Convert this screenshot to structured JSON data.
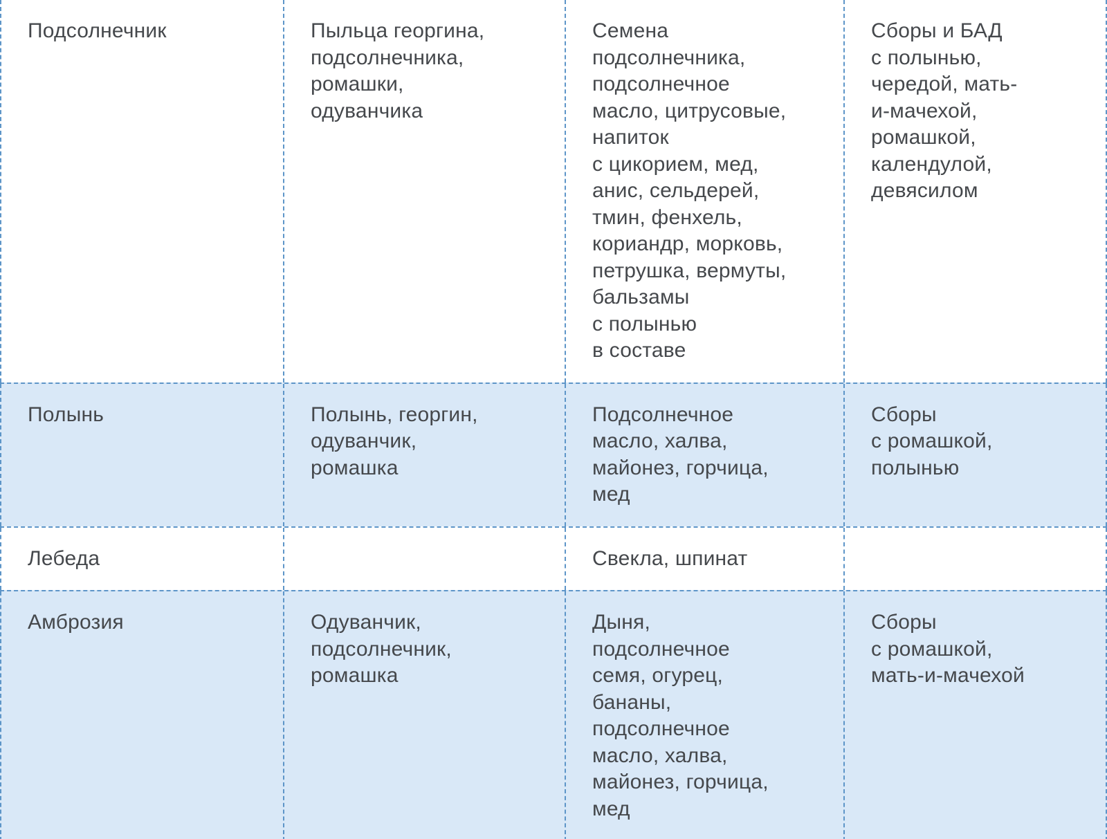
{
  "colors": {
    "border": "#5d95c8",
    "alt_row_bg": "#d9e8f7",
    "white_row_bg": "#ffffff",
    "text": "#45484c"
  },
  "table": {
    "description": "Allergen cross-reactivity table (4 columns): allergen, cross-reacting pollen, cross-reacting foods, herbal collections/supplements",
    "rows": [
      {
        "allergen": "Подсолнечник",
        "pollen": "Пыльца георгина,\nподсолнечника,\nромашки,\nодуванчика",
        "foods": "Семена\nподсолнечника,\nподсолнечное\nмасло, цитрусовые,\nнапиток\nс цикорием, мед,\nанис, сельдерей,\nтмин, фенхель,\nкориандр, морковь,\nпетрушка, вермуты,\nбальзамы\nс полынью\nв составе",
        "herbal": "Сборы и БАД\nс полынью,\nчередой, мать-\nи-мачехой,\nромашкой,\nкалендулой,\nдевясилом"
      },
      {
        "allergen": "Полынь",
        "pollen": "Полынь, георгин,\nодуванчик,\nромашка",
        "foods": "Подсолнечное\nмасло, халва,\nмайонез, горчица,\nмед",
        "herbal": "Сборы\nс ромашкой,\nполынью"
      },
      {
        "allergen": "Лебеда",
        "pollen": "",
        "foods": "Свекла, шпинат",
        "herbal": ""
      },
      {
        "allergen": "Амброзия",
        "pollen": "Одуванчик,\nподсолнечник,\nромашка",
        "foods": "Дыня,\nподсолнечное\nсемя, огурец,\nбананы,\nподсолнечное\nмасло, халва,\nмайонез, горчица,\nмед",
        "herbal": "Сборы\nс ромашкой,\nмать-и-мачехой"
      }
    ]
  }
}
